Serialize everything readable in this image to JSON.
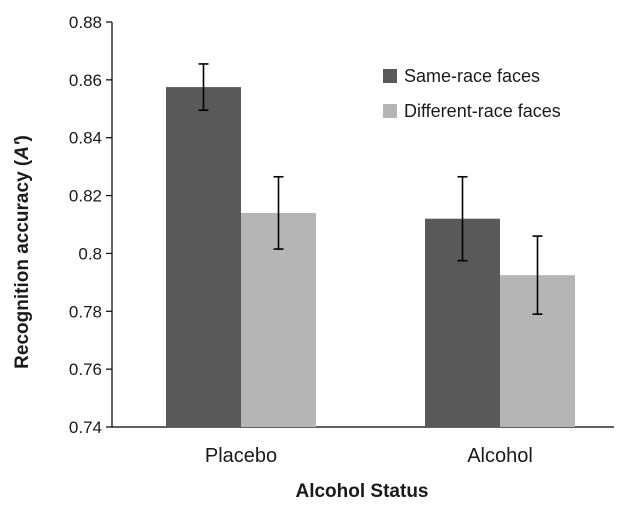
{
  "chart_data": {
    "type": "bar",
    "categories": [
      "Placebo",
      "Alcohol"
    ],
    "series": [
      {
        "name": "Same-race faces",
        "color": "#595959",
        "values": [
          0.8575,
          0.812
        ],
        "error": [
          0.008,
          0.0145
        ]
      },
      {
        "name": "Different-race faces",
        "color": "#b5b5b5",
        "values": [
          0.814,
          0.7925
        ],
        "error": [
          0.0125,
          0.0135
        ]
      }
    ],
    "xlabel": "Alcohol Status",
    "ylabel_prefix": "Recognition accuracy (",
    "ylabel_symbol": "A'",
    "ylabel_suffix": ")",
    "ylim": [
      0.74,
      0.88
    ],
    "yticks": [
      "0.74",
      "0.76",
      "0.78",
      "0.8",
      "0.82",
      "0.84",
      "0.86",
      "0.88"
    ],
    "legend_position": "top-right",
    "grid": false
  }
}
